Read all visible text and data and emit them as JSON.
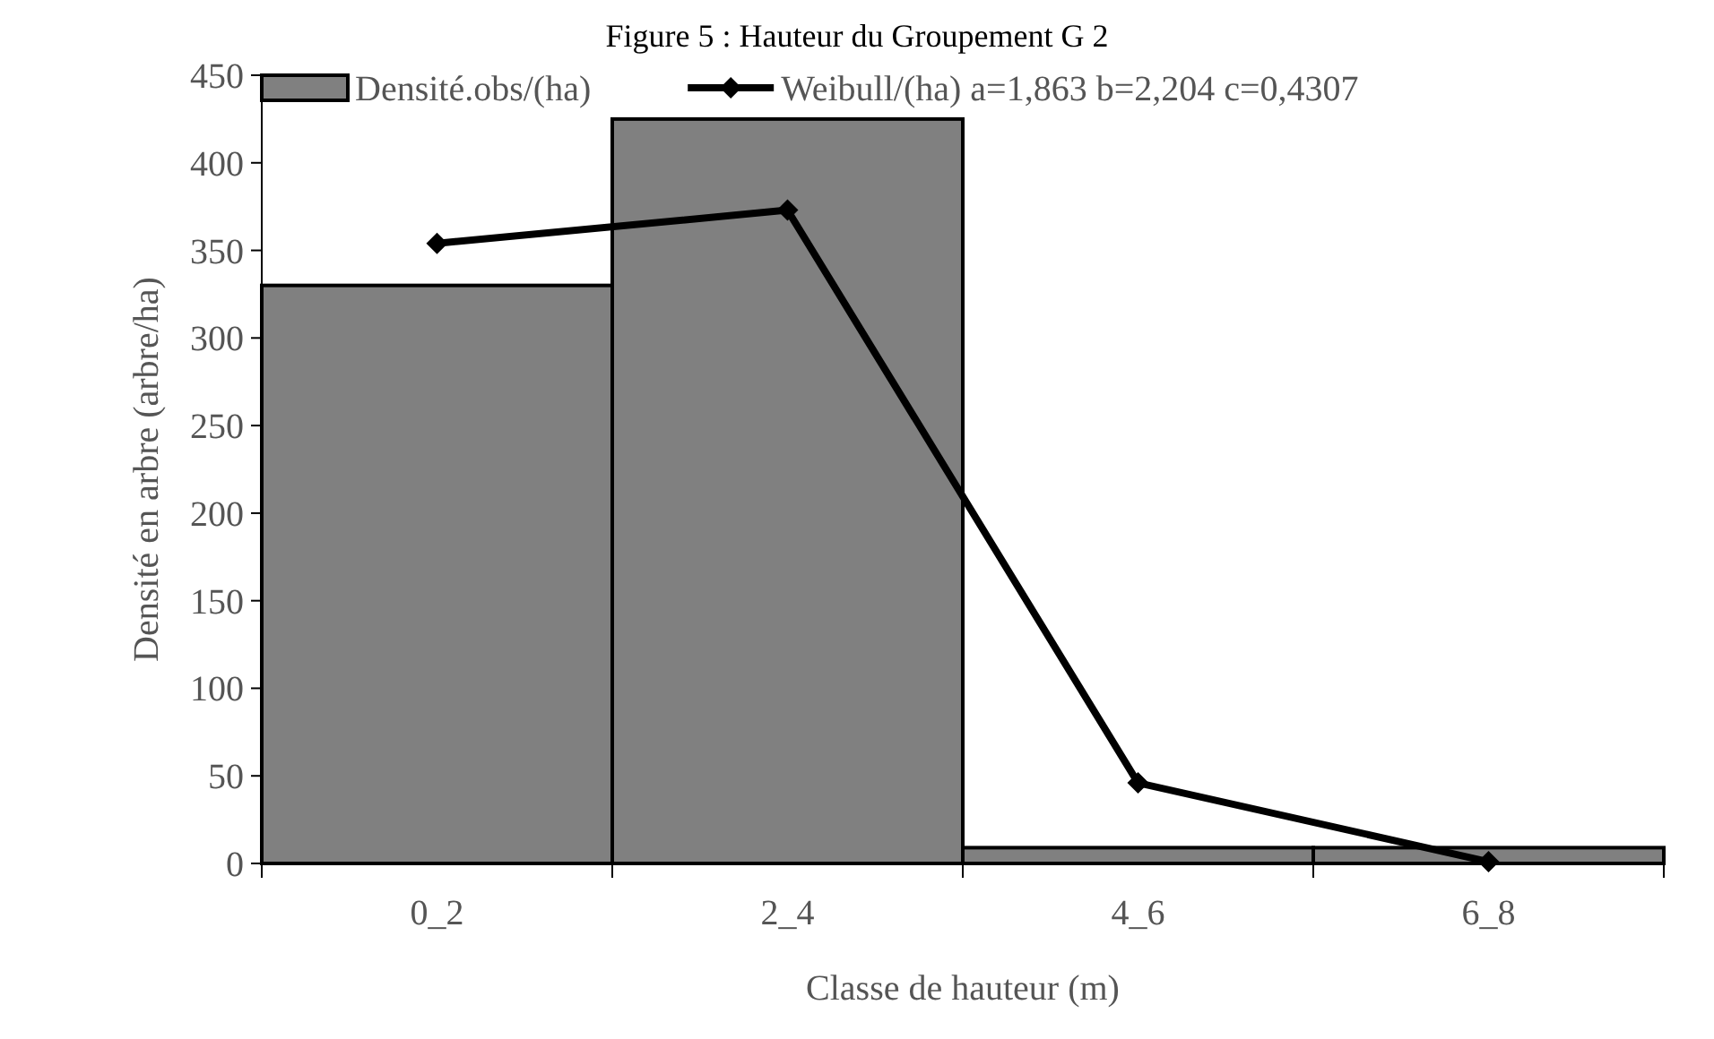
{
  "chart_data": {
    "type": "bar",
    "title": "Figure 5 : Hauteur du Groupement G 2",
    "xlabel": "Classe de hauteur (m)",
    "ylabel": "Densité en arbre (arbre/ha)",
    "categories": [
      "0_2",
      "2_4",
      "4_6",
      "6_8"
    ],
    "ylim": [
      0,
      450
    ],
    "yticks": [
      0,
      50,
      100,
      150,
      200,
      250,
      300,
      350,
      400,
      450
    ],
    "grid": false,
    "legend": "top",
    "series": [
      {
        "name": "Densité.obs/(ha)",
        "color": "#808080",
        "values": [
          330,
          425,
          9,
          9
        ]
      },
      {
        "name": "Weibull/(ha) a=1,863 b=2,204 c=0,4307",
        "type": "line",
        "color": "#000000",
        "marker": "diamond",
        "values": [
          354,
          373,
          46,
          1
        ]
      }
    ]
  }
}
